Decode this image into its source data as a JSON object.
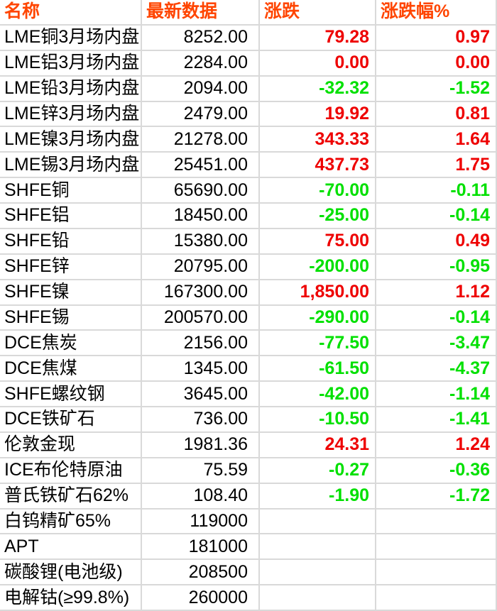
{
  "colors": {
    "header_text": "#ff4500",
    "up": "#ee0000",
    "down": "#00e000",
    "text": "#000000",
    "border": "#d9d9d9",
    "background": "#ffffff"
  },
  "chart_data": {
    "type": "table",
    "title": "",
    "columns": [
      "名称",
      "最新数据",
      "涨跌",
      "涨跌幅%"
    ],
    "rows": [
      [
        "LME铜3月场内盘",
        "8252.00",
        "79.28",
        "0.97"
      ],
      [
        "LME铝3月场内盘",
        "2284.00",
        "0.00",
        "0.00"
      ],
      [
        "LME铅3月场内盘",
        "2094.00",
        "-32.32",
        "-1.52"
      ],
      [
        "LME锌3月场内盘",
        "2479.00",
        "19.92",
        "0.81"
      ],
      [
        "LME镍3月场内盘",
        "21278.00",
        "343.33",
        "1.64"
      ],
      [
        "LME锡3月场内盘",
        "25451.00",
        "437.73",
        "1.75"
      ],
      [
        "SHFE铜",
        "65690.00",
        "-70.00",
        "-0.11"
      ],
      [
        "SHFE铝",
        "18450.00",
        "-25.00",
        "-0.14"
      ],
      [
        "SHFE铅",
        "15380.00",
        "75.00",
        "0.49"
      ],
      [
        "SHFE锌",
        "20795.00",
        "-200.00",
        "-0.95"
      ],
      [
        "SHFE镍",
        "167300.00",
        "1,850.00",
        "1.12"
      ],
      [
        "SHFE锡",
        "200570.00",
        "-290.00",
        "-0.14"
      ],
      [
        "DCE焦炭",
        "2156.00",
        "-77.50",
        "-3.47"
      ],
      [
        "DCE焦煤",
        "1345.00",
        "-61.50",
        "-4.37"
      ],
      [
        "SHFE螺纹钢",
        "3645.00",
        "-42.00",
        "-1.14"
      ],
      [
        "DCE铁矿石",
        "736.00",
        "-10.50",
        "-1.41"
      ],
      [
        "伦敦金现",
        "1981.36",
        "24.31",
        "1.24"
      ],
      [
        "ICE布伦特原油",
        "75.59",
        "-0.27",
        "-0.36"
      ],
      [
        "普氏铁矿石62%",
        "108.40",
        "-1.90",
        "-1.72"
      ],
      [
        "白钨精矿65%",
        "119000",
        "",
        ""
      ],
      [
        "APT",
        "181000",
        "",
        ""
      ],
      [
        "碳酸锂(电池级)",
        "208500",
        "",
        ""
      ],
      [
        "电解钴(≥99.8%)",
        "260000",
        "",
        ""
      ]
    ]
  }
}
